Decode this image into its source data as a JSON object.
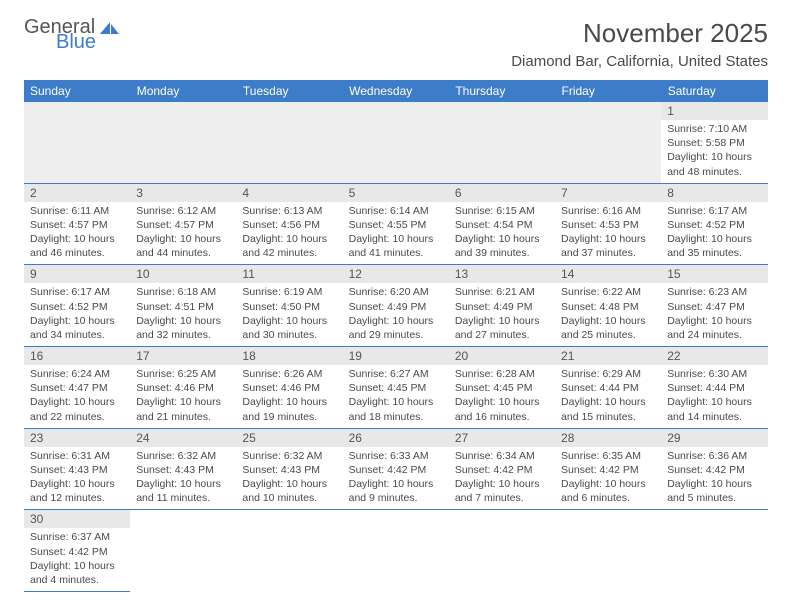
{
  "logo": {
    "word1": "General",
    "word2": "Blue",
    "sail_color": "#3d7cc9",
    "text_color": "#555555"
  },
  "title": "November 2025",
  "location": "Diamond Bar, California, United States",
  "theme": {
    "header_bg": "#3d7cc9",
    "header_fg": "#ffffff",
    "daynum_bg": "#e8e8e8",
    "rule": "#3d7cc9",
    "body_text": "#4a4a4a"
  },
  "weekdays": [
    "Sunday",
    "Monday",
    "Tuesday",
    "Wednesday",
    "Thursday",
    "Friday",
    "Saturday"
  ],
  "cell_labels": {
    "sunrise": "Sunrise:",
    "sunset": "Sunset:",
    "daylight": "Daylight:"
  },
  "first_weekday_index": 6,
  "days": [
    {
      "n": 1,
      "sunrise": "7:10 AM",
      "sunset": "5:58 PM",
      "daylight": "10 hours and 48 minutes."
    },
    {
      "n": 2,
      "sunrise": "6:11 AM",
      "sunset": "4:57 PM",
      "daylight": "10 hours and 46 minutes."
    },
    {
      "n": 3,
      "sunrise": "6:12 AM",
      "sunset": "4:57 PM",
      "daylight": "10 hours and 44 minutes."
    },
    {
      "n": 4,
      "sunrise": "6:13 AM",
      "sunset": "4:56 PM",
      "daylight": "10 hours and 42 minutes."
    },
    {
      "n": 5,
      "sunrise": "6:14 AM",
      "sunset": "4:55 PM",
      "daylight": "10 hours and 41 minutes."
    },
    {
      "n": 6,
      "sunrise": "6:15 AM",
      "sunset": "4:54 PM",
      "daylight": "10 hours and 39 minutes."
    },
    {
      "n": 7,
      "sunrise": "6:16 AM",
      "sunset": "4:53 PM",
      "daylight": "10 hours and 37 minutes."
    },
    {
      "n": 8,
      "sunrise": "6:17 AM",
      "sunset": "4:52 PM",
      "daylight": "10 hours and 35 minutes."
    },
    {
      "n": 9,
      "sunrise": "6:17 AM",
      "sunset": "4:52 PM",
      "daylight": "10 hours and 34 minutes."
    },
    {
      "n": 10,
      "sunrise": "6:18 AM",
      "sunset": "4:51 PM",
      "daylight": "10 hours and 32 minutes."
    },
    {
      "n": 11,
      "sunrise": "6:19 AM",
      "sunset": "4:50 PM",
      "daylight": "10 hours and 30 minutes."
    },
    {
      "n": 12,
      "sunrise": "6:20 AM",
      "sunset": "4:49 PM",
      "daylight": "10 hours and 29 minutes."
    },
    {
      "n": 13,
      "sunrise": "6:21 AM",
      "sunset": "4:49 PM",
      "daylight": "10 hours and 27 minutes."
    },
    {
      "n": 14,
      "sunrise": "6:22 AM",
      "sunset": "4:48 PM",
      "daylight": "10 hours and 25 minutes."
    },
    {
      "n": 15,
      "sunrise": "6:23 AM",
      "sunset": "4:47 PM",
      "daylight": "10 hours and 24 minutes."
    },
    {
      "n": 16,
      "sunrise": "6:24 AM",
      "sunset": "4:47 PM",
      "daylight": "10 hours and 22 minutes."
    },
    {
      "n": 17,
      "sunrise": "6:25 AM",
      "sunset": "4:46 PM",
      "daylight": "10 hours and 21 minutes."
    },
    {
      "n": 18,
      "sunrise": "6:26 AM",
      "sunset": "4:46 PM",
      "daylight": "10 hours and 19 minutes."
    },
    {
      "n": 19,
      "sunrise": "6:27 AM",
      "sunset": "4:45 PM",
      "daylight": "10 hours and 18 minutes."
    },
    {
      "n": 20,
      "sunrise": "6:28 AM",
      "sunset": "4:45 PM",
      "daylight": "10 hours and 16 minutes."
    },
    {
      "n": 21,
      "sunrise": "6:29 AM",
      "sunset": "4:44 PM",
      "daylight": "10 hours and 15 minutes."
    },
    {
      "n": 22,
      "sunrise": "6:30 AM",
      "sunset": "4:44 PM",
      "daylight": "10 hours and 14 minutes."
    },
    {
      "n": 23,
      "sunrise": "6:31 AM",
      "sunset": "4:43 PM",
      "daylight": "10 hours and 12 minutes."
    },
    {
      "n": 24,
      "sunrise": "6:32 AM",
      "sunset": "4:43 PM",
      "daylight": "10 hours and 11 minutes."
    },
    {
      "n": 25,
      "sunrise": "6:32 AM",
      "sunset": "4:43 PM",
      "daylight": "10 hours and 10 minutes."
    },
    {
      "n": 26,
      "sunrise": "6:33 AM",
      "sunset": "4:42 PM",
      "daylight": "10 hours and 9 minutes."
    },
    {
      "n": 27,
      "sunrise": "6:34 AM",
      "sunset": "4:42 PM",
      "daylight": "10 hours and 7 minutes."
    },
    {
      "n": 28,
      "sunrise": "6:35 AM",
      "sunset": "4:42 PM",
      "daylight": "10 hours and 6 minutes."
    },
    {
      "n": 29,
      "sunrise": "6:36 AM",
      "sunset": "4:42 PM",
      "daylight": "10 hours and 5 minutes."
    },
    {
      "n": 30,
      "sunrise": "6:37 AM",
      "sunset": "4:42 PM",
      "daylight": "10 hours and 4 minutes."
    }
  ]
}
